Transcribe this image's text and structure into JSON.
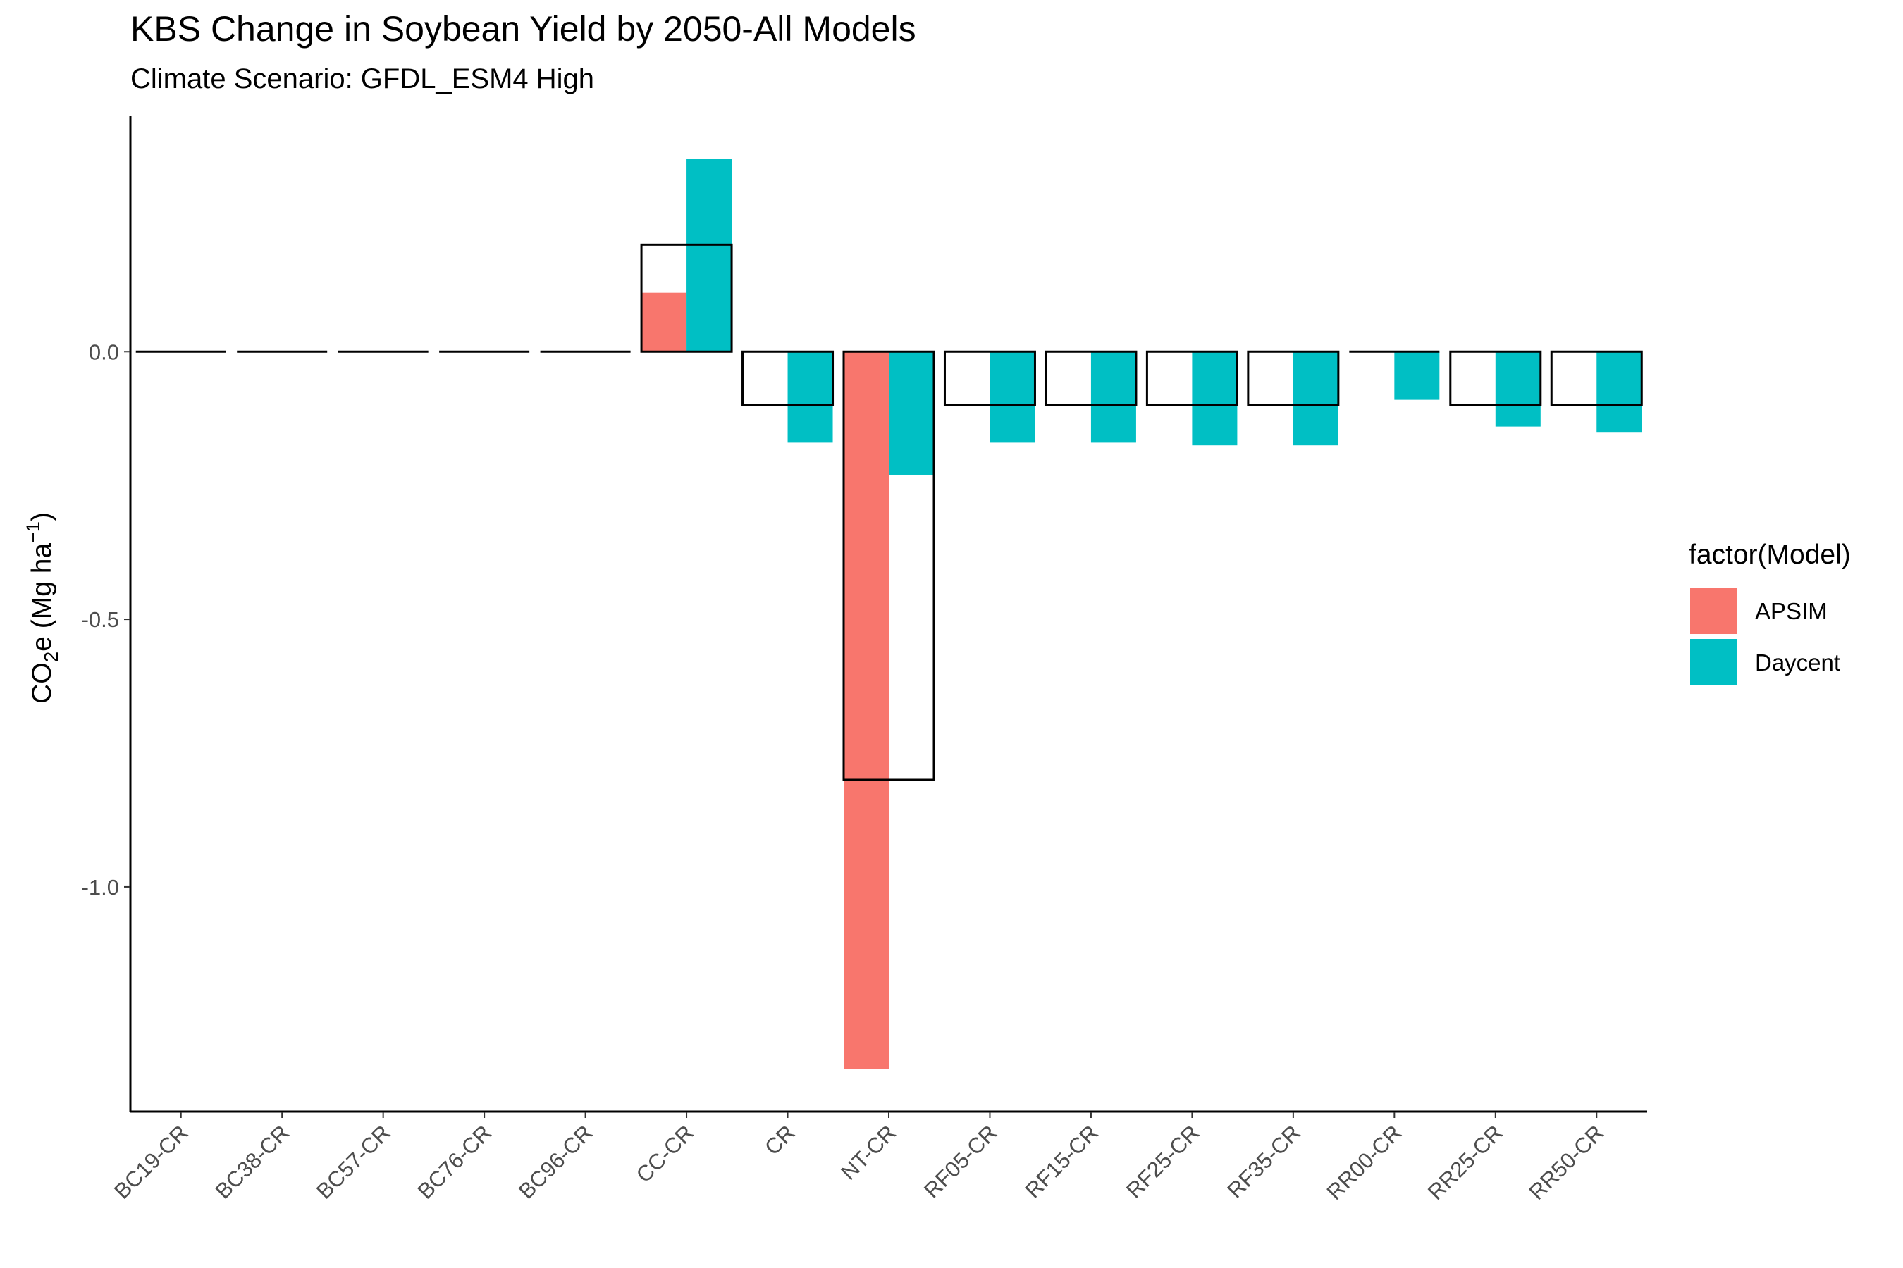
{
  "chart_data": {
    "type": "bar",
    "title": "KBS Change in Soybean Yield by 2050-All Models",
    "subtitle": "Climate Scenario: GFDL_ESM4 High",
    "ylabel_main": "CO",
    "ylabel_sub": "2",
    "ylabel_rest": "e (Mg ha",
    "ylabel_sup": "−1",
    "ylabel_close": ")",
    "xlabel": "",
    "ylim": [
      -1.42,
      0.44
    ],
    "yticks": [
      0.0,
      -0.5,
      -1.0
    ],
    "ytick_labels": [
      "0.0",
      "-0.5",
      "-1.0"
    ],
    "categories": [
      "BC19-CR",
      "BC38-CR",
      "BC57-CR",
      "BC76-CR",
      "BC96-CR",
      "CC-CR",
      "CR",
      "NT-CR",
      "RF05-CR",
      "RF15-CR",
      "RF25-CR",
      "RF35-CR",
      "RR00-CR",
      "RR25-CR",
      "RR50-CR"
    ],
    "series": [
      {
        "name": "APSIM",
        "color": "#F8766D",
        "values": [
          0,
          0,
          0,
          0,
          0,
          0.11,
          0,
          -1.34,
          0,
          0,
          0,
          0,
          0,
          0,
          0
        ]
      },
      {
        "name": "Daycent",
        "color": "#00BFC4",
        "values": [
          0,
          0,
          0,
          0,
          0,
          0.36,
          -0.17,
          -0.23,
          -0.17,
          -0.17,
          -0.175,
          -0.175,
          -0.09,
          -0.14,
          -0.15
        ]
      }
    ],
    "outline_series": {
      "color": "#000000",
      "values": [
        0,
        0,
        0,
        0,
        0,
        0.2,
        -0.1,
        -0.8,
        -0.1,
        -0.1,
        -0.1,
        -0.1,
        0,
        -0.1,
        -0.1
      ]
    },
    "legend": {
      "title": "factor(Model)",
      "placement": "right"
    },
    "grid": false
  }
}
